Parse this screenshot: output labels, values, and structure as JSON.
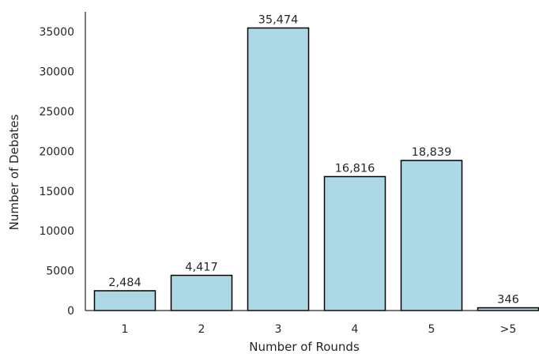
{
  "chart_data": {
    "type": "bar",
    "title": "",
    "xlabel": "Number of Rounds",
    "ylabel": "Number of Debates",
    "categories": [
      "1",
      "2",
      "3",
      "4",
      "5",
      ">5"
    ],
    "values": [
      2484,
      4417,
      35474,
      16816,
      18839,
      346
    ],
    "value_labels": [
      "2,484",
      "4,417",
      "35,474",
      "16,816",
      "18,839",
      "346"
    ],
    "yticks": [
      0,
      5000,
      10000,
      15000,
      20000,
      25000,
      30000,
      35000
    ],
    "ylim": [
      0,
      37500
    ],
    "grid": false,
    "legend": "none",
    "colors": {
      "bar_fill": "#add8e6",
      "bar_edge": "#000000",
      "axis": "#262626"
    }
  }
}
